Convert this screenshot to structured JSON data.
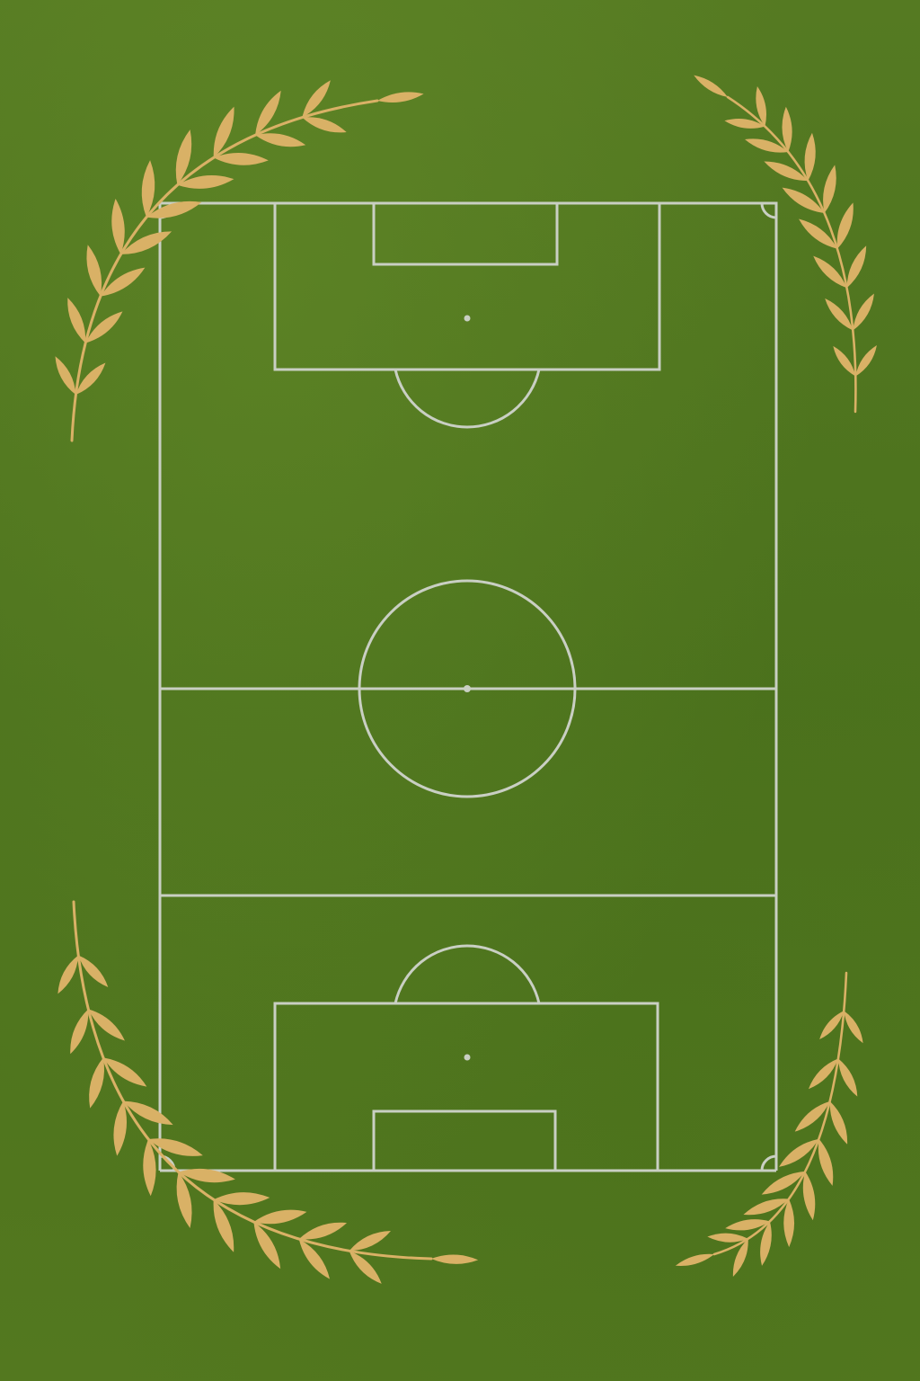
{
  "colors": {
    "turf": "#4f741e",
    "pitch_line": "#c9cfc3",
    "leaf_gold": "#d9b166"
  },
  "pitch": {
    "lines": [
      "touchline-left",
      "touchline-right",
      "goal-line-top",
      "goal-line-bottom",
      "halfway-line",
      "center-circle",
      "center-spot",
      "penalty-area-top",
      "penalty-area-bottom",
      "goal-area-top",
      "goal-area-bottom",
      "penalty-spot-top",
      "penalty-spot-bottom",
      "penalty-arc-top",
      "penalty-arc-bottom",
      "corner-arcs"
    ]
  },
  "decorations": {
    "icons": [
      "laurel-branch-top-left-icon",
      "laurel-branch-top-right-icon",
      "laurel-branch-bottom-left-icon",
      "laurel-branch-bottom-right-icon"
    ]
  }
}
